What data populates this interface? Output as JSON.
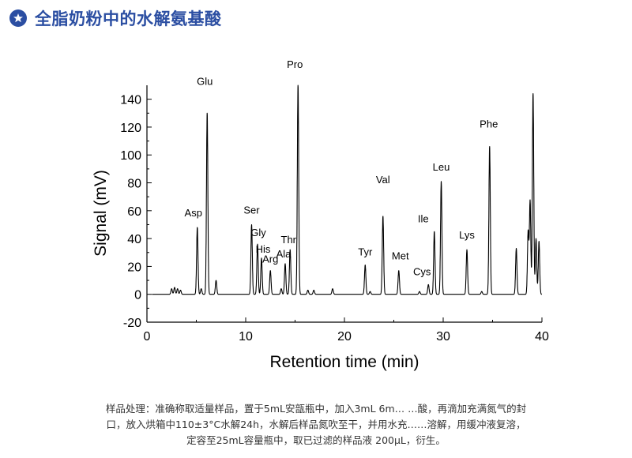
{
  "header": {
    "title": "全脂奶粉中的水解氨基酸",
    "icon": "star-badge-icon",
    "accent_color": "#2b4ea2"
  },
  "chart_data": {
    "type": "line",
    "title": "",
    "xlabel": "Retention time (min)",
    "ylabel": "Signal (mV)",
    "xlim": [
      0,
      40
    ],
    "ylim": [
      -20,
      150
    ],
    "xticks": [
      0,
      10,
      20,
      30,
      40
    ],
    "yticks": [
      -20,
      0,
      20,
      40,
      60,
      80,
      100,
      120,
      140
    ],
    "grid": false,
    "line_color": "#000000",
    "peaks": [
      {
        "name": "Asp",
        "x": 5.1,
        "y": 48
      },
      {
        "name": "Glu",
        "x": 6.1,
        "y": 130
      },
      {
        "name": "Ser",
        "x": 10.6,
        "y": 50
      },
      {
        "name": "Gly",
        "x": 11.2,
        "y": 36
      },
      {
        "name": "His",
        "x": 11.6,
        "y": 26
      },
      {
        "name": "Arg",
        "x": 12.5,
        "y": 17
      },
      {
        "name": "Ala",
        "x": 14.0,
        "y": 22
      },
      {
        "name": "Thr",
        "x": 14.5,
        "y": 32
      },
      {
        "name": "Pro",
        "x": 15.3,
        "y": 150
      },
      {
        "name": "Tyr",
        "x": 22.1,
        "y": 21
      },
      {
        "name": "Val",
        "x": 23.9,
        "y": 56
      },
      {
        "name": "Met",
        "x": 25.5,
        "y": 17
      },
      {
        "name": "Cys",
        "x": 28.5,
        "y": 7
      },
      {
        "name": "Ile",
        "x": 29.1,
        "y": 45
      },
      {
        "name": "Leu",
        "x": 29.8,
        "y": 81
      },
      {
        "name": "Lys",
        "x": 32.4,
        "y": 32
      },
      {
        "name": "Phe",
        "x": 34.7,
        "y": 106
      }
    ],
    "minor_peaks": [
      {
        "x": 2.5,
        "y": 4
      },
      {
        "x": 2.8,
        "y": 5
      },
      {
        "x": 3.1,
        "y": 4
      },
      {
        "x": 3.4,
        "y": 3
      },
      {
        "x": 5.5,
        "y": 4
      },
      {
        "x": 7.0,
        "y": 10
      },
      {
        "x": 13.6,
        "y": 4
      },
      {
        "x": 16.3,
        "y": 3
      },
      {
        "x": 16.9,
        "y": 3
      },
      {
        "x": 18.8,
        "y": 4
      },
      {
        "x": 22.6,
        "y": 2
      },
      {
        "x": 27.6,
        "y": 2
      },
      {
        "x": 33.9,
        "y": 2
      },
      {
        "x": 37.4,
        "y": 33
      },
      {
        "x": 38.6,
        "y": 45
      },
      {
        "x": 38.8,
        "y": 67
      },
      {
        "x": 39.1,
        "y": 144
      },
      {
        "x": 39.4,
        "y": 40
      },
      {
        "x": 39.7,
        "y": 38
      }
    ]
  },
  "caption": {
    "lines": [
      "样品处理：准确称取适量样品，置于5mL安瓿瓶中，加入3mL 6m…  …酸，再滴加充满氮气的封",
      "口，放入烘箱中110±3°C水解24h，水解后样品氮吹至干，并用水充……溶解，用缓冲液复溶，",
      "定容至25mL容量瓶中，取已过滤的样品液 200μL，衍生。"
    ]
  }
}
